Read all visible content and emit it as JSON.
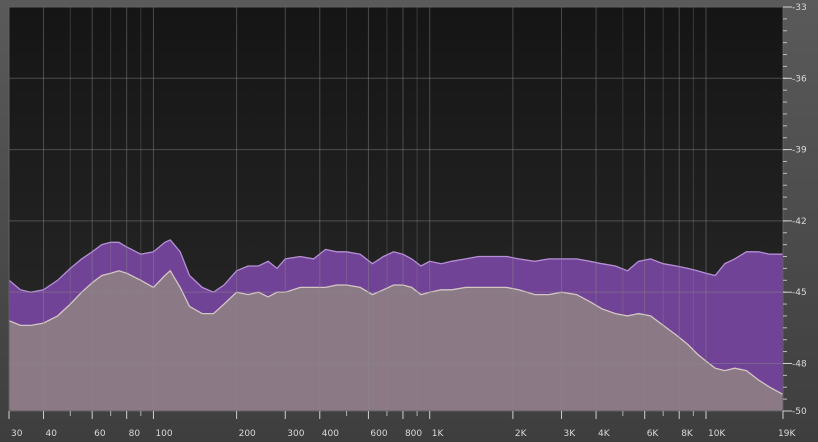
{
  "chart_data": {
    "type": "area",
    "title": "",
    "xlabel": "",
    "ylabel": "",
    "x_scale": "log",
    "xlim": [
      30,
      19000
    ],
    "ylim": [
      -50,
      -33
    ],
    "grid": true,
    "x_ticks": [
      {
        "value": 30,
        "label": "30"
      },
      {
        "value": 40,
        "label": "40"
      },
      {
        "value": 60,
        "label": "60"
      },
      {
        "value": 80,
        "label": "80"
      },
      {
        "value": 100,
        "label": "100"
      },
      {
        "value": 200,
        "label": "200"
      },
      {
        "value": 300,
        "label": "300"
      },
      {
        "value": 400,
        "label": "400"
      },
      {
        "value": 600,
        "label": "600"
      },
      {
        "value": 800,
        "label": "800"
      },
      {
        "value": 1000,
        "label": "1K"
      },
      {
        "value": 2000,
        "label": "2K"
      },
      {
        "value": 3000,
        "label": "3K"
      },
      {
        "value": 4000,
        "label": "4K"
      },
      {
        "value": 6000,
        "label": "6K"
      },
      {
        "value": 8000,
        "label": "8K"
      },
      {
        "value": 10000,
        "label": "10K"
      },
      {
        "value": 19000,
        "label": "19K"
      }
    ],
    "x_minor_grid": [
      50,
      70,
      90,
      500,
      700,
      900,
      5000,
      7000,
      9000
    ],
    "y_ticks": [
      {
        "value": -33,
        "label": "-33"
      },
      {
        "value": -36,
        "label": "-36"
      },
      {
        "value": -39,
        "label": "-39"
      },
      {
        "value": -42,
        "label": "-42"
      },
      {
        "value": -45,
        "label": "-45"
      },
      {
        "value": -48,
        "label": "-48"
      },
      {
        "value": -50,
        "label": "-50"
      }
    ],
    "series": [
      {
        "color": "#74449a",
        "points": [
          [
            30,
            -44.5
          ],
          [
            33,
            -44.9
          ],
          [
            36,
            -45.0
          ],
          [
            40,
            -44.9
          ],
          [
            45,
            -44.5
          ],
          [
            50,
            -44.0
          ],
          [
            55,
            -43.6
          ],
          [
            60,
            -43.3
          ],
          [
            65,
            -43.0
          ],
          [
            70,
            -42.9
          ],
          [
            75,
            -42.9
          ],
          [
            80,
            -43.1
          ],
          [
            90,
            -43.4
          ],
          [
            100,
            -43.3
          ],
          [
            110,
            -42.9
          ],
          [
            115,
            -42.8
          ],
          [
            125,
            -43.3
          ],
          [
            135,
            -44.3
          ],
          [
            150,
            -44.8
          ],
          [
            165,
            -45.0
          ],
          [
            180,
            -44.7
          ],
          [
            200,
            -44.1
          ],
          [
            220,
            -43.9
          ],
          [
            240,
            -43.9
          ],
          [
            260,
            -43.7
          ],
          [
            280,
            -44.0
          ],
          [
            300,
            -43.6
          ],
          [
            340,
            -43.5
          ],
          [
            380,
            -43.6
          ],
          [
            420,
            -43.2
          ],
          [
            460,
            -43.3
          ],
          [
            500,
            -43.3
          ],
          [
            560,
            -43.4
          ],
          [
            620,
            -43.8
          ],
          [
            680,
            -43.5
          ],
          [
            740,
            -43.3
          ],
          [
            800,
            -43.4
          ],
          [
            860,
            -43.6
          ],
          [
            930,
            -43.9
          ],
          [
            1000,
            -43.7
          ],
          [
            1100,
            -43.8
          ],
          [
            1200,
            -43.7
          ],
          [
            1350,
            -43.6
          ],
          [
            1500,
            -43.5
          ],
          [
            1700,
            -43.5
          ],
          [
            1900,
            -43.5
          ],
          [
            2100,
            -43.6
          ],
          [
            2400,
            -43.7
          ],
          [
            2700,
            -43.6
          ],
          [
            3000,
            -43.6
          ],
          [
            3400,
            -43.6
          ],
          [
            3800,
            -43.7
          ],
          [
            4200,
            -43.8
          ],
          [
            4700,
            -43.9
          ],
          [
            5200,
            -44.1
          ],
          [
            5700,
            -43.7
          ],
          [
            6300,
            -43.6
          ],
          [
            7000,
            -43.8
          ],
          [
            7800,
            -43.9
          ],
          [
            8600,
            -44.0
          ],
          [
            9300,
            -44.1
          ],
          [
            10000,
            -44.2
          ],
          [
            10800,
            -44.3
          ],
          [
            11700,
            -43.8
          ],
          [
            12700,
            -43.6
          ],
          [
            14000,
            -43.3
          ],
          [
            15500,
            -43.3
          ],
          [
            17000,
            -43.4
          ],
          [
            19000,
            -43.4
          ]
        ]
      },
      {
        "color": "#8c7b85",
        "points": [
          [
            30,
            -46.2
          ],
          [
            33,
            -46.4
          ],
          [
            36,
            -46.4
          ],
          [
            40,
            -46.3
          ],
          [
            45,
            -46.0
          ],
          [
            50,
            -45.5
          ],
          [
            55,
            -45.0
          ],
          [
            60,
            -44.6
          ],
          [
            65,
            -44.3
          ],
          [
            70,
            -44.2
          ],
          [
            75,
            -44.1
          ],
          [
            80,
            -44.2
          ],
          [
            90,
            -44.5
          ],
          [
            100,
            -44.8
          ],
          [
            110,
            -44.3
          ],
          [
            115,
            -44.1
          ],
          [
            125,
            -44.8
          ],
          [
            135,
            -45.6
          ],
          [
            150,
            -45.9
          ],
          [
            165,
            -45.9
          ],
          [
            180,
            -45.5
          ],
          [
            200,
            -45.0
          ],
          [
            220,
            -45.1
          ],
          [
            240,
            -45.0
          ],
          [
            260,
            -45.2
          ],
          [
            280,
            -45.0
          ],
          [
            300,
            -45.0
          ],
          [
            340,
            -44.8
          ],
          [
            380,
            -44.8
          ],
          [
            420,
            -44.8
          ],
          [
            460,
            -44.7
          ],
          [
            500,
            -44.7
          ],
          [
            560,
            -44.8
          ],
          [
            620,
            -45.1
          ],
          [
            680,
            -44.9
          ],
          [
            740,
            -44.7
          ],
          [
            800,
            -44.7
          ],
          [
            860,
            -44.8
          ],
          [
            930,
            -45.1
          ],
          [
            1000,
            -45.0
          ],
          [
            1100,
            -44.9
          ],
          [
            1200,
            -44.9
          ],
          [
            1350,
            -44.8
          ],
          [
            1500,
            -44.8
          ],
          [
            1700,
            -44.8
          ],
          [
            1900,
            -44.8
          ],
          [
            2100,
            -44.9
          ],
          [
            2400,
            -45.1
          ],
          [
            2700,
            -45.1
          ],
          [
            3000,
            -45.0
          ],
          [
            3400,
            -45.1
          ],
          [
            3800,
            -45.4
          ],
          [
            4200,
            -45.7
          ],
          [
            4700,
            -45.9
          ],
          [
            5200,
            -46.0
          ],
          [
            5700,
            -45.9
          ],
          [
            6300,
            -46.0
          ],
          [
            7000,
            -46.4
          ],
          [
            7800,
            -46.8
          ],
          [
            8600,
            -47.2
          ],
          [
            9300,
            -47.6
          ],
          [
            10000,
            -47.9
          ],
          [
            10800,
            -48.2
          ],
          [
            11700,
            -48.3
          ],
          [
            12700,
            -48.2
          ],
          [
            14000,
            -48.3
          ],
          [
            15500,
            -48.7
          ],
          [
            17000,
            -49.0
          ],
          [
            19000,
            -49.3
          ]
        ]
      }
    ]
  }
}
